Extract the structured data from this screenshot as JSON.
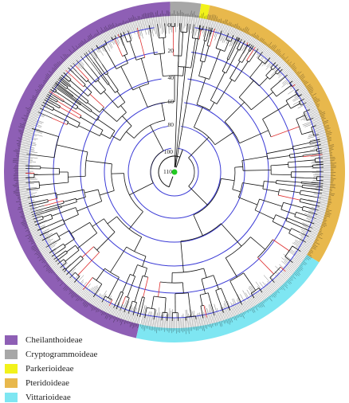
{
  "age_ticks": [
    "0",
    "20",
    "40",
    "60",
    "80",
    "100",
    "110"
  ],
  "colors": {
    "ring": "#3b3bd6",
    "branch": "#111111",
    "highlight_branch": "#e03030",
    "root_node": "#22c922"
  },
  "clades": [
    {
      "name": "Cheilanthoideae",
      "color": "#8e5fb5"
    },
    {
      "name": "Cryptogrammoideae",
      "color": "#a7a7a7"
    },
    {
      "name": "Parkerioideae",
      "color": "#f2f21a"
    },
    {
      "name": "Pteridoideae",
      "color": "#e8b84c"
    },
    {
      "name": "Vittarioideae",
      "color": "#7ee6f2"
    }
  ],
  "legend": {
    "items": [
      {
        "label": "Cheilanthoideae",
        "color": "#8e5fb5"
      },
      {
        "label": "Cryptogrammoideae",
        "color": "#a7a7a7"
      },
      {
        "label": "Parkerioideae",
        "color": "#f2f21a"
      },
      {
        "label": "Pteridoideae",
        "color": "#e8b84c"
      },
      {
        "label": "Vittarioideae",
        "color": "#7ee6f2"
      }
    ]
  }
}
